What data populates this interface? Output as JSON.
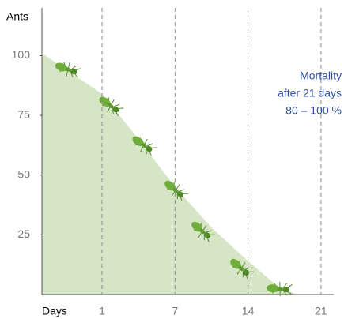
{
  "chart_data": {
    "type": "area",
    "y_label": "Ants",
    "x_label": "Days",
    "annotation": [
      "Mortality",
      "after 21 days",
      "80 – 100 %"
    ],
    "x": [
      0,
      1,
      4,
      7,
      10.5,
      14,
      16.7,
      18.6
    ],
    "values": [
      101,
      84,
      65,
      45,
      28,
      14,
      4,
      0
    ],
    "color": "#d5e5c6",
    "annotation_color": "#2f4f9e",
    "xlim": [
      0,
      22
    ],
    "xticks": [
      1,
      7,
      14,
      21
    ],
    "ylim": [
      0,
      120
    ],
    "yticks": [
      25,
      50,
      75,
      100
    ],
    "grid": true
  }
}
